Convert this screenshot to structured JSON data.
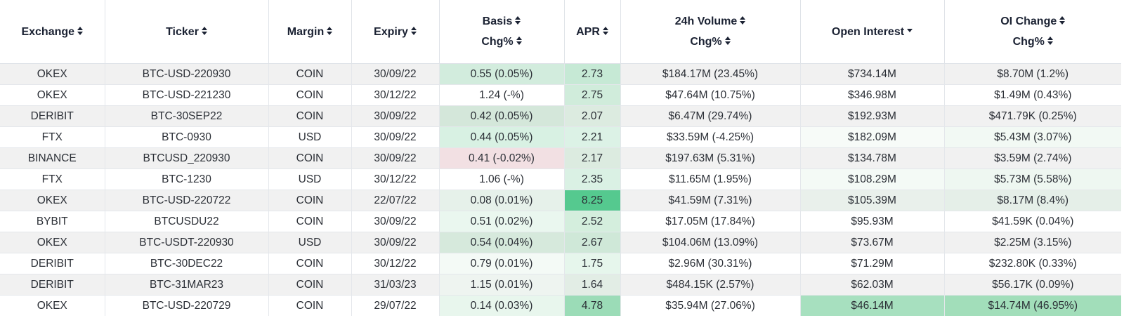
{
  "headers": [
    {
      "key": "exchange",
      "line1": "Exchange",
      "line2": "",
      "sort": "both"
    },
    {
      "key": "ticker",
      "line1": "Ticker",
      "line2": "",
      "sort": "both"
    },
    {
      "key": "margin",
      "line1": "Margin",
      "line2": "",
      "sort": "both"
    },
    {
      "key": "expiry",
      "line1": "Expiry",
      "line2": "",
      "sort": "both"
    },
    {
      "key": "basis",
      "line1": "Basis",
      "line2": "Chg%",
      "sort": "both"
    },
    {
      "key": "apr",
      "line1": "APR",
      "line2": "",
      "sort": "both"
    },
    {
      "key": "volume",
      "line1": "24h Volume",
      "line2": "Chg%",
      "sort": "both"
    },
    {
      "key": "open_interest",
      "line1": "Open Interest",
      "line2": "",
      "sort": "desc"
    },
    {
      "key": "oi_change",
      "line1": "OI Change",
      "line2": "Chg%",
      "sort": "both"
    }
  ],
  "rows": [
    {
      "exchange": "OKEX",
      "ticker": "BTC-USD-220930",
      "margin": "COIN",
      "expiry": "30/09/22",
      "basis": "0.55 (0.05%)",
      "apr": "2.73",
      "volume": "$184.17M (23.45%)",
      "open_interest": "$734.14M",
      "oi_change": "$8.70M (1.2%)",
      "colors": {
        "basis": "#d2ecdd",
        "apr": "#c6e9d5",
        "volume": "",
        "open_interest": "",
        "oi_change": ""
      }
    },
    {
      "exchange": "OKEX",
      "ticker": "BTC-USD-221230",
      "margin": "COIN",
      "expiry": "30/12/22",
      "basis": "1.24 (-%)",
      "apr": "2.75",
      "volume": "$47.64M (10.75%)",
      "open_interest": "$346.98M",
      "oi_change": "$1.49M (0.43%)",
      "colors": {
        "basis": "",
        "apr": "#d0ecdb",
        "volume": "",
        "open_interest": "",
        "oi_change": ""
      }
    },
    {
      "exchange": "DERIBIT",
      "ticker": "BTC-30SEP22",
      "margin": "COIN",
      "expiry": "30/09/22",
      "basis": "0.42 (0.05%)",
      "apr": "2.07",
      "volume": "$6.47M (29.74%)",
      "open_interest": "$192.93M",
      "oi_change": "$471.79K (0.25%)",
      "colors": {
        "basis": "#d4e7da",
        "apr": "#dcebe0",
        "volume": "",
        "open_interest": "",
        "oi_change": ""
      }
    },
    {
      "exchange": "FTX",
      "ticker": "BTC-0930",
      "margin": "USD",
      "expiry": "30/09/22",
      "basis": "0.44 (0.05%)",
      "apr": "2.21",
      "volume": "$33.59M (-4.25%)",
      "open_interest": "$182.09M",
      "oi_change": "$5.43M (3.07%)",
      "colors": {
        "basis": "#d8f1e3",
        "apr": "#dcf2e6",
        "volume": "",
        "open_interest": "#f7fbf8",
        "oi_change": "#f2f9f4"
      }
    },
    {
      "exchange": "BINANCE",
      "ticker": "BTCUSD_220930",
      "margin": "COIN",
      "expiry": "30/09/22",
      "basis": "0.41 (-0.02%)",
      "apr": "2.17",
      "volume": "$197.63M (5.31%)",
      "open_interest": "$134.78M",
      "oi_change": "$3.59M (2.74%)",
      "colors": {
        "basis": "#f2e0e3",
        "apr": "#dcebe0",
        "volume": "",
        "open_interest": "",
        "oi_change": ""
      }
    },
    {
      "exchange": "FTX",
      "ticker": "BTC-1230",
      "margin": "USD",
      "expiry": "30/12/22",
      "basis": "1.06 (-%)",
      "apr": "2.35",
      "volume": "$11.65M (1.95%)",
      "open_interest": "$108.29M",
      "oi_change": "$5.73M (5.58%)",
      "colors": {
        "basis": "",
        "apr": "#daf1e4",
        "volume": "",
        "open_interest": "#f4faf6",
        "oi_change": "#eef7f1"
      }
    },
    {
      "exchange": "OKEX",
      "ticker": "BTC-USD-220722",
      "margin": "COIN",
      "expiry": "22/07/22",
      "basis": "0.08 (0.01%)",
      "apr": "8.25",
      "volume": "$41.59M (7.31%)",
      "open_interest": "$105.39M",
      "oi_change": "$8.17M (8.4%)",
      "colors": {
        "basis": "#e6f1ea",
        "apr": "#55c98f",
        "volume": "",
        "open_interest": "#e9f0eb",
        "oi_change": "#e5efe8"
      }
    },
    {
      "exchange": "BYBIT",
      "ticker": "BTCUSDU22",
      "margin": "COIN",
      "expiry": "30/09/22",
      "basis": "0.51 (0.02%)",
      "apr": "2.52",
      "volume": "$17.05M (17.84%)",
      "open_interest": "$95.93M",
      "oi_change": "$41.59K (0.04%)",
      "colors": {
        "basis": "#eaf7ef",
        "apr": "#d4eedd",
        "volume": "",
        "open_interest": "",
        "oi_change": ""
      }
    },
    {
      "exchange": "OKEX",
      "ticker": "BTC-USDT-220930",
      "margin": "USD",
      "expiry": "30/09/22",
      "basis": "0.54 (0.04%)",
      "apr": "2.67",
      "volume": "$104.06M (13.09%)",
      "open_interest": "$73.67M",
      "oi_change": "$2.25M (3.15%)",
      "colors": {
        "basis": "#d6e9dc",
        "apr": "#cfe8d8",
        "volume": "",
        "open_interest": "",
        "oi_change": ""
      }
    },
    {
      "exchange": "DERIBIT",
      "ticker": "BTC-30DEC22",
      "margin": "COIN",
      "expiry": "30/12/22",
      "basis": "0.79 (0.01%)",
      "apr": "1.75",
      "volume": "$2.96M (30.31%)",
      "open_interest": "$71.29M",
      "oi_change": "$232.80K (0.33%)",
      "colors": {
        "basis": "#f4faf6",
        "apr": "#e6f6ec",
        "volume": "",
        "open_interest": "",
        "oi_change": ""
      }
    },
    {
      "exchange": "DERIBIT",
      "ticker": "BTC-31MAR23",
      "margin": "COIN",
      "expiry": "31/03/23",
      "basis": "1.15 (0.01%)",
      "apr": "1.64",
      "volume": "$484.15K (2.57%)",
      "open_interest": "$62.03M",
      "oi_change": "$56.17K (0.09%)",
      "colors": {
        "basis": "#eef4f0",
        "apr": "#e2ede5",
        "volume": "",
        "open_interest": "",
        "oi_change": ""
      }
    },
    {
      "exchange": "OKEX",
      "ticker": "BTC-USD-220729",
      "margin": "COIN",
      "expiry": "29/07/22",
      "basis": "0.14 (0.03%)",
      "apr": "4.78",
      "volume": "$35.94M (27.06%)",
      "open_interest": "$46.14M",
      "oi_change": "$14.74M (46.95%)",
      "colors": {
        "basis": "#e8f6ed",
        "apr": "#9bdcb7",
        "volume": "",
        "open_interest": "#a7e0bf",
        "oi_change": "#a2deba"
      }
    }
  ]
}
